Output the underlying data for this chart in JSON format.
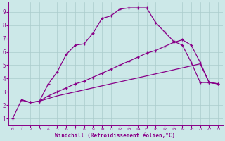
{
  "xlabel": "Windchill (Refroidissement éolien,°C)",
  "background_color": "#cce8e8",
  "line_color": "#880088",
  "xlim": [
    -0.5,
    23.5
  ],
  "ylim": [
    0.5,
    9.7
  ],
  "xticks": [
    0,
    1,
    2,
    3,
    4,
    5,
    6,
    7,
    8,
    9,
    10,
    11,
    12,
    13,
    14,
    15,
    16,
    17,
    18,
    19,
    20,
    21,
    22,
    23
  ],
  "yticks": [
    1,
    2,
    3,
    4,
    5,
    6,
    7,
    8,
    9
  ],
  "curve1_x": [
    0,
    1,
    2,
    3,
    4,
    5,
    6,
    7,
    8,
    9,
    10,
    11,
    12,
    13,
    14,
    15,
    16,
    17,
    18,
    19,
    20,
    21,
    22,
    23
  ],
  "curve1_y": [
    1.0,
    2.4,
    2.2,
    2.3,
    3.6,
    4.5,
    5.8,
    6.5,
    6.6,
    7.4,
    8.5,
    8.7,
    9.2,
    9.3,
    9.3,
    9.3,
    8.2,
    7.5,
    6.8,
    6.5,
    5.2,
    3.7,
    3.7,
    3.6
  ],
  "curve2_x": [
    1,
    2,
    3,
    4,
    5,
    6,
    7,
    8,
    9,
    10,
    11,
    12,
    13,
    14,
    15,
    16,
    17,
    18,
    19,
    20,
    21,
    22,
    23
  ],
  "curve2_y": [
    2.4,
    2.2,
    2.3,
    2.7,
    3.0,
    3.3,
    3.6,
    3.8,
    4.1,
    4.4,
    4.7,
    5.0,
    5.3,
    5.6,
    5.9,
    6.1,
    6.4,
    6.7,
    6.9,
    6.5,
    5.2,
    3.7,
    3.6
  ],
  "curve3_x": [
    1,
    2,
    3,
    4,
    5,
    6,
    7,
    8,
    9,
    10,
    11,
    12,
    13,
    14,
    15,
    16,
    17,
    18,
    19,
    20,
    21,
    22,
    23
  ],
  "curve3_y": [
    2.4,
    2.2,
    2.3,
    2.5,
    2.7,
    2.85,
    3.0,
    3.15,
    3.3,
    3.45,
    3.6,
    3.75,
    3.9,
    4.05,
    4.2,
    4.35,
    4.5,
    4.65,
    4.8,
    4.95,
    5.1,
    3.7,
    3.6
  ],
  "grid_color": "#aacccc"
}
